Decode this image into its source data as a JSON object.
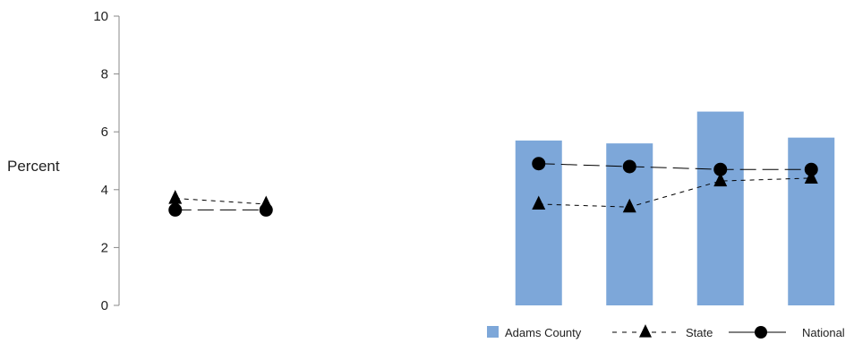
{
  "chart_data": {
    "type": "bar",
    "ylabel": "Percent",
    "ylim": [
      0,
      10
    ],
    "yticks": [
      "0",
      "2",
      "4",
      "6",
      "8",
      "10"
    ],
    "grid": false,
    "legend_position": "bottom-right",
    "bar_color": "#7da7d9",
    "positions": 8,
    "series": [
      {
        "name": "Adams County",
        "kind": "bar",
        "x": [
          5,
          6,
          7,
          8
        ],
        "values": [
          5.7,
          5.6,
          6.7,
          5.8
        ]
      },
      {
        "name": "State",
        "kind": "line",
        "marker": "triangle",
        "dash": "dashed",
        "x": [
          1,
          2
        ],
        "values": [
          3.7,
          3.5
        ]
      },
      {
        "name": "State",
        "kind": "line",
        "marker": "triangle",
        "dash": "dashed",
        "x": [
          5,
          6,
          7,
          8
        ],
        "values": [
          3.5,
          3.4,
          4.3,
          4.4
        ]
      },
      {
        "name": "National",
        "kind": "line",
        "marker": "circle",
        "dash": "solid",
        "x": [
          1,
          2
        ],
        "values": [
          3.3,
          3.3
        ]
      },
      {
        "name": "National",
        "kind": "line",
        "marker": "circle",
        "dash": "solid",
        "x": [
          5,
          6,
          7,
          8
        ],
        "values": [
          4.9,
          4.8,
          4.7,
          4.7
        ]
      }
    ],
    "legend": [
      {
        "label": "Adams County",
        "symbol": "bar"
      },
      {
        "label": "State",
        "symbol": "triangle-dashed"
      },
      {
        "label": "National",
        "symbol": "circle-solid"
      }
    ]
  }
}
